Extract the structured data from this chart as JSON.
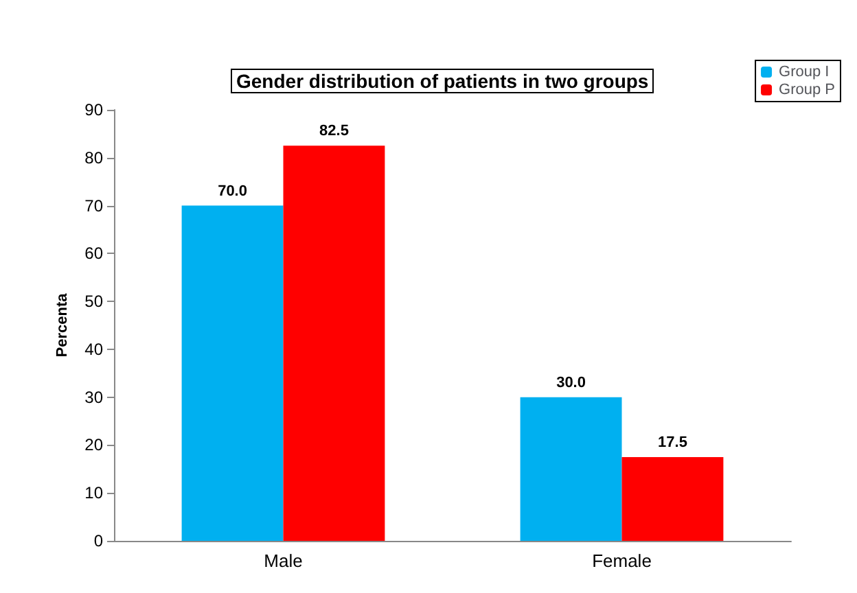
{
  "chart_data": {
    "type": "bar",
    "title": "Gender distribution of patients in two groups",
    "ylabel": "Percenta",
    "categories": [
      "Male",
      "Female"
    ],
    "series": [
      {
        "name": "Group I",
        "color": "#00b0f0",
        "values": [
          70.0,
          30.0
        ],
        "value_labels": [
          "70.0",
          "30.0"
        ]
      },
      {
        "name": "Group P",
        "color": "#ff0000",
        "values": [
          82.5,
          17.5
        ],
        "value_labels": [
          "82.5",
          "17.5"
        ]
      }
    ],
    "ylim": [
      0,
      90
    ],
    "yticks": [
      0,
      10,
      20,
      30,
      40,
      50,
      60,
      70,
      80,
      90
    ],
    "grid": false,
    "legend": "top right"
  }
}
